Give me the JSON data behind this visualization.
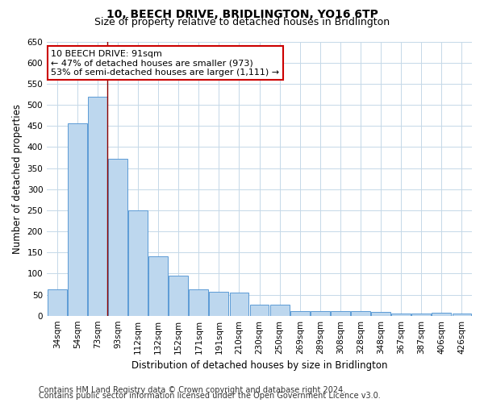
{
  "title": "10, BEECH DRIVE, BRIDLINGTON, YO16 6TP",
  "subtitle": "Size of property relative to detached houses in Bridlington",
  "xlabel": "Distribution of detached houses by size in Bridlington",
  "ylabel": "Number of detached properties",
  "categories": [
    "34sqm",
    "54sqm",
    "73sqm",
    "93sqm",
    "112sqm",
    "132sqm",
    "152sqm",
    "171sqm",
    "191sqm",
    "210sqm",
    "230sqm",
    "250sqm",
    "269sqm",
    "289sqm",
    "308sqm",
    "328sqm",
    "348sqm",
    "367sqm",
    "387sqm",
    "406sqm",
    "426sqm"
  ],
  "values": [
    63,
    457,
    520,
    372,
    249,
    141,
    94,
    63,
    57,
    55,
    27,
    27,
    11,
    11,
    11,
    11,
    8,
    6,
    5,
    7,
    5
  ],
  "bar_color": "#bdd7ee",
  "bar_edge_color": "#5b9bd5",
  "marker_line_color": "#8b0000",
  "annotation_line1": "10 BEECH DRIVE: 91sqm",
  "annotation_line2": "← 47% of detached houses are smaller (973)",
  "annotation_line3": "53% of semi-detached houses are larger (1,111) →",
  "annotation_box_color": "#ffffff",
  "annotation_box_edge": "#cc0000",
  "ylim": [
    0,
    650
  ],
  "yticks": [
    0,
    50,
    100,
    150,
    200,
    250,
    300,
    350,
    400,
    450,
    500,
    550,
    600,
    650
  ],
  "footer1": "Contains HM Land Registry data © Crown copyright and database right 2024.",
  "footer2": "Contains public sector information licensed under the Open Government Licence v3.0.",
  "bg_color": "#ffffff",
  "grid_color": "#c5d8e8",
  "title_fontsize": 10,
  "subtitle_fontsize": 9,
  "axis_label_fontsize": 8.5,
  "tick_fontsize": 7.5,
  "footer_fontsize": 7,
  "annotation_fontsize": 8
}
